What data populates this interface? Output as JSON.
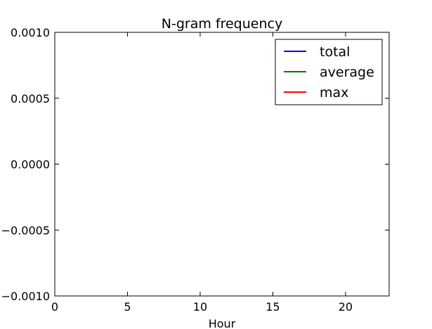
{
  "chart_data": {
    "type": "line",
    "title": "N-gram frequency",
    "xlabel": "Hour",
    "ylabel": "",
    "xlim": [
      0,
      23
    ],
    "ylim": [
      -0.001,
      0.001
    ],
    "x_ticks": [
      0,
      5,
      10,
      15,
      20
    ],
    "x_tick_labels": [
      "0",
      "5",
      "10",
      "15",
      "20"
    ],
    "y_ticks": [
      -0.001,
      -0.0005,
      0.0,
      0.0005,
      0.001
    ],
    "y_tick_labels": [
      "−0.0010",
      "−0.0005",
      "0.0000",
      "0.0005",
      "0.0010"
    ],
    "grid": false,
    "legend_position": "top-right",
    "series": [
      {
        "name": "total",
        "color": "#0000ff",
        "x": [],
        "y": []
      },
      {
        "name": "average",
        "color": "#008000",
        "x": [],
        "y": []
      },
      {
        "name": "max",
        "color": "#ff0000",
        "x": [],
        "y": []
      }
    ]
  }
}
